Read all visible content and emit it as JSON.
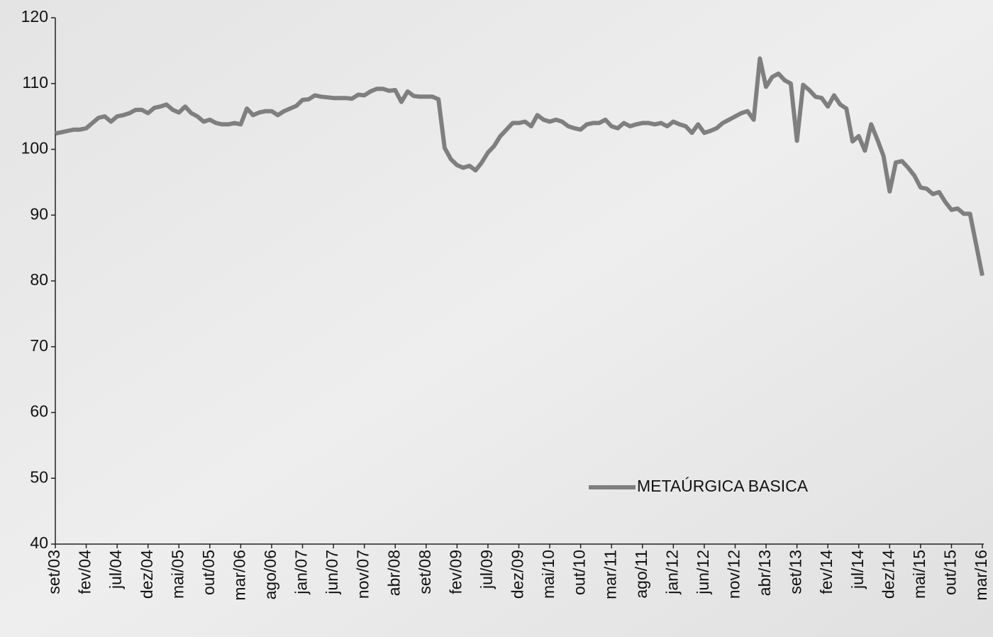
{
  "chart_data": {
    "type": "line",
    "categories": [
      "set/03",
      null,
      null,
      null,
      null,
      "fev/04",
      null,
      null,
      null,
      null,
      "jul/04",
      null,
      null,
      null,
      null,
      "dez/04",
      null,
      null,
      null,
      null,
      "mai/05",
      null,
      null,
      null,
      null,
      "out/05",
      null,
      null,
      null,
      null,
      "mar/06",
      null,
      null,
      null,
      null,
      "ago/06",
      null,
      null,
      null,
      null,
      "jan/07",
      null,
      null,
      null,
      null,
      "jun/07",
      null,
      null,
      null,
      null,
      "nov/07",
      null,
      null,
      null,
      null,
      "abr/08",
      null,
      null,
      null,
      null,
      "set/08",
      null,
      null,
      null,
      null,
      "fev/09",
      null,
      null,
      null,
      null,
      "jul/09",
      null,
      null,
      null,
      null,
      "dez/09",
      null,
      null,
      null,
      null,
      "mai/10",
      null,
      null,
      null,
      null,
      "out/10",
      null,
      null,
      null,
      null,
      "mar/11",
      null,
      null,
      null,
      null,
      "ago/11",
      null,
      null,
      null,
      null,
      "jan/12",
      null,
      null,
      null,
      null,
      "jun/12",
      null,
      null,
      null,
      null,
      "nov/12",
      null,
      null,
      null,
      null,
      "abr/13",
      null,
      null,
      null,
      null,
      "set/13",
      null,
      null,
      null,
      null,
      "fev/14",
      null,
      null,
      null,
      null,
      "jul/14",
      null,
      null,
      null,
      null,
      "dez/14",
      null,
      null,
      null,
      null,
      "mai/15",
      null,
      null,
      null,
      null,
      "out/15",
      null,
      null,
      null,
      null,
      "mar/16"
    ],
    "series": [
      {
        "name": "METAÚRGICA BASICA",
        "color": "#7f7f7f",
        "values": [
          102.4,
          102.6,
          102.8,
          103,
          103,
          103.2,
          104,
          104.8,
          105,
          104.2,
          105,
          105.2,
          105.5,
          106,
          106,
          105.5,
          106.3,
          106.5,
          106.8,
          106,
          105.6,
          106.5,
          105.5,
          105,
          104.2,
          104.5,
          104,
          103.8,
          103.8,
          104,
          103.8,
          106.2,
          105.2,
          105.6,
          105.8,
          105.8,
          105.2,
          105.8,
          106.2,
          106.6,
          107.5,
          107.6,
          108.2,
          108,
          107.9,
          107.8,
          107.8,
          107.8,
          107.7,
          108.3,
          108.2,
          108.8,
          109.2,
          109.2,
          108.9,
          109,
          107.2,
          108.8,
          108.1,
          108,
          108,
          108,
          107.6,
          100.2,
          98.5,
          97.6,
          97.2,
          97.5,
          96.8,
          98,
          99.5,
          100.5,
          102,
          103,
          104,
          104,
          104.2,
          103.5,
          105.2,
          104.5,
          104.2,
          104.5,
          104.2,
          103.5,
          103.2,
          103,
          103.8,
          104,
          104,
          104.5,
          103.5,
          103.2,
          104,
          103.5,
          103.8,
          104,
          104,
          103.8,
          104,
          103.5,
          104.2,
          103.8,
          103.5,
          102.5,
          103.8,
          102.5,
          102.8,
          103.2,
          104,
          104.5,
          105,
          105.5,
          105.8,
          104.5,
          113.8,
          109.5,
          111,
          111.5,
          110.5,
          110,
          101.3,
          109.8,
          109,
          108,
          107.8,
          106.5,
          108.2,
          106.8,
          106.2,
          101.2,
          102,
          99.8,
          103.8,
          101.5,
          99,
          93.6,
          98,
          98.2,
          97.2,
          96,
          94.2,
          94,
          93.2,
          93.5,
          92,
          90.8,
          91,
          90.2,
          90.2,
          85.5,
          80.8
        ]
      }
    ],
    "ylim": [
      40,
      120
    ],
    "yticks": [
      40,
      50,
      60,
      70,
      80,
      90,
      100,
      110,
      120
    ],
    "legend": "lower right"
  }
}
